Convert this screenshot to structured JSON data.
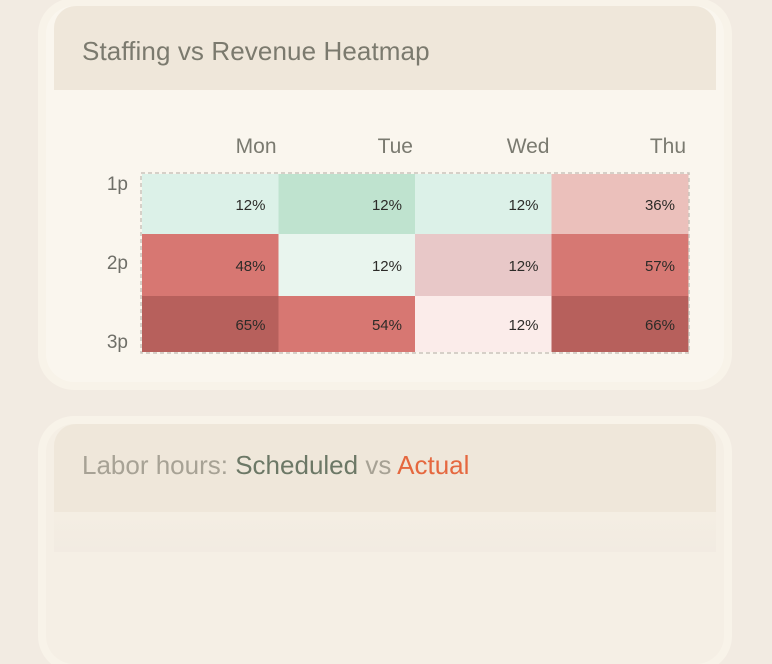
{
  "heatmap_card": {
    "title": "Staffing vs Revenue Heatmap"
  },
  "labor_card": {
    "prefix": "Labor hours:",
    "scheduled": "Scheduled",
    "vs": "vs",
    "actual": "Actual",
    "colors": {
      "scheduled": "#6c7866",
      "actual": "#e5683f"
    }
  },
  "chart_data": {
    "type": "heatmap",
    "title": "Staffing vs Revenue Heatmap",
    "columns": [
      "Mon",
      "Tue",
      "Wed",
      "Thu"
    ],
    "rows": [
      "1p",
      "2p",
      "3p"
    ],
    "values": [
      [
        12,
        12,
        12,
        36
      ],
      [
        48,
        12,
        12,
        57
      ],
      [
        65,
        54,
        12,
        66
      ]
    ],
    "value_suffix": "%",
    "cell_colors": [
      [
        "#dcf1e8",
        "#bfe3cf",
        "#dcf1e8",
        "#ebc0bb"
      ],
      [
        "#d77772",
        "#e9f5ee",
        "#e8c8c8",
        "#d67873"
      ],
      [
        "#b7605c",
        "#d77772",
        "#fbecea",
        "#b7605c"
      ]
    ]
  }
}
